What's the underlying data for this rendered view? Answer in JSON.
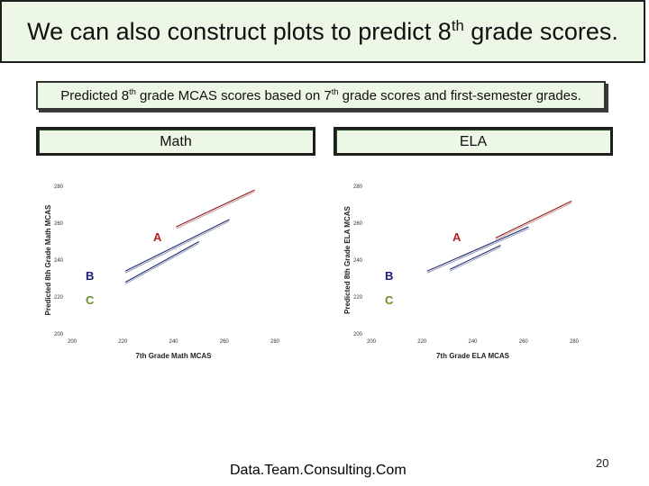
{
  "title": {
    "text": "We can also construct plots to predict 8",
    "sup": "th",
    "rest": " grade scores."
  },
  "subtitle": {
    "pre": "Predicted 8",
    "sup1": "th",
    "mid": " grade MCAS scores based on 7",
    "sup2": "th",
    "post": " grade scores and first-semester grades."
  },
  "panels": {
    "math_label": "Math",
    "ela_label": "ELA"
  },
  "footer": "Data.Team.Consulting.Com",
  "page_number": "20",
  "colors": {
    "grade_a": "#b22222",
    "grade_b": "#1a1a7a",
    "grade_c": "#6b8e23",
    "line_a": "#8b1a1a",
    "line_b": "#1c2a6e"
  },
  "chart_data": [
    {
      "type": "line",
      "panel": "Math",
      "xlabel": "7th Grade Math MCAS",
      "ylabel": "Predicted 8th Grade Math MCAS",
      "xlim": [
        200,
        280
      ],
      "ylim": [
        200,
        280
      ],
      "xticks": [
        "200",
        "220",
        "240",
        "260",
        "280"
      ],
      "yticks": [
        "200",
        "220",
        "240",
        "260",
        "280"
      ],
      "series": [
        {
          "name": "A",
          "color": "#8b1a1a",
          "x": [
            241,
            272
          ],
          "y": [
            258,
            278
          ]
        },
        {
          "name": "B",
          "color": "#1c2a6e",
          "x": [
            221,
            262
          ],
          "y": [
            234,
            262
          ]
        },
        {
          "name": "C",
          "color": "#1c2a6e",
          "x": [
            221,
            250
          ],
          "y": [
            228,
            250
          ]
        }
      ]
    },
    {
      "type": "line",
      "panel": "ELA",
      "xlabel": "7th Grade ELA MCAS",
      "ylabel": "Predicted 8th Grade ELA MCAS",
      "xlim": [
        200,
        280
      ],
      "ylim": [
        200,
        280
      ],
      "xticks": [
        "200",
        "220",
        "240",
        "260",
        "280"
      ],
      "yticks": [
        "200",
        "220",
        "240",
        "260",
        "280"
      ],
      "series": [
        {
          "name": "A",
          "color": "#8b1a1a",
          "x": [
            249,
            279
          ],
          "y": [
            252,
            272
          ]
        },
        {
          "name": "B",
          "color": "#1c2a6e",
          "x": [
            222,
            262
          ],
          "y": [
            234,
            258
          ]
        },
        {
          "name": "C",
          "color": "#1c2a6e",
          "x": [
            231,
            251
          ],
          "y": [
            235,
            248
          ]
        }
      ]
    }
  ]
}
